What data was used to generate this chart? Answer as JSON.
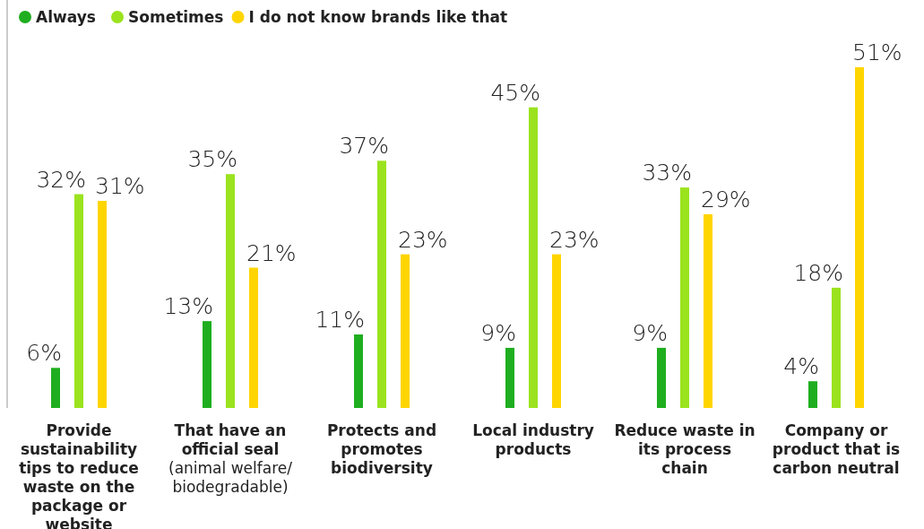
{
  "chart_data": {
    "type": "bar",
    "categories": [
      "Provide sustainability tips to reduce waste on the package or website",
      "That have an official seal (animal welfare/ biodegradable)",
      "Protects and promotes biodiversity",
      "Local industry products",
      "Reduce waste in its process chain",
      "Company or product that is carbon neutral"
    ],
    "series": [
      {
        "name": "Always",
        "color": "#1fae1f",
        "values": [
          6,
          13,
          11,
          9,
          9,
          4
        ],
        "value_labels": [
          "6%",
          "13%",
          "11%",
          "9%",
          "9%",
          "4%"
        ]
      },
      {
        "name": "Sometimes",
        "color": "#9ae31e",
        "values": [
          32,
          35,
          37,
          45,
          33,
          18
        ],
        "value_labels": [
          "32%",
          "35%",
          "37%",
          "45%",
          "33%",
          "18%"
        ]
      },
      {
        "name": "I do not know brands like that",
        "color": "#ffd500",
        "values": [
          31,
          21,
          23,
          23,
          29,
          51
        ],
        "value_labels": [
          "31%",
          "21%",
          "23%",
          "23%",
          "29%",
          "51%"
        ]
      }
    ],
    "legend": "top left"
  }
}
